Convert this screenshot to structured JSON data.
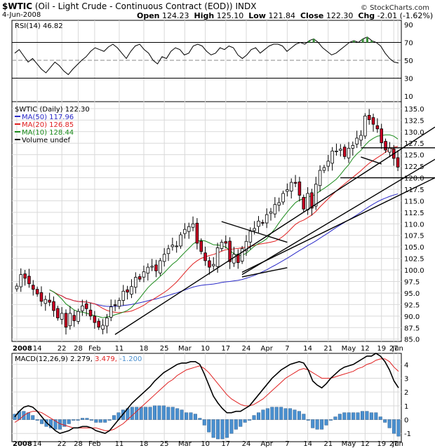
{
  "header": {
    "symbol": "$WTIC",
    "name": "(Oil - Light Crude - Continuous Contract (EOD))",
    "exchange": "INDX",
    "date": "4-Jun-2008",
    "credit": "© StockCharts.com",
    "open_label": "Open",
    "open": "124.23",
    "high_label": "High",
    "high": "125.10",
    "low_label": "Low",
    "low": "121.84",
    "close_label": "Close",
    "close": "122.30",
    "chg_label": "Chg",
    "chg": "-2.01 (-1.62%)"
  },
  "colors": {
    "up": "#ffffff",
    "down": "#cc0022",
    "ma50": "#2a2ac8",
    "ma20": "#e02020",
    "ma10": "#1a8a1a",
    "macd": "#000000",
    "signal": "#e02020",
    "hist": "#4a90d0",
    "grid": "#d9d9d9",
    "rsi_fill": "#3a8f3a"
  },
  "chart_data": [
    {
      "type": "line",
      "panel": "RSI",
      "legend": "RSI(14) 46.82",
      "y_ticks": [
        10,
        30,
        50,
        70,
        90
      ],
      "ylim": [
        10,
        90
      ],
      "guides": [
        30,
        50,
        70
      ],
      "values": [
        58,
        62,
        55,
        48,
        52,
        46,
        40,
        36,
        42,
        48,
        44,
        38,
        34,
        40,
        45,
        50,
        54,
        60,
        64,
        62,
        60,
        65,
        68,
        64,
        58,
        52,
        60,
        66,
        68,
        62,
        58,
        50,
        46,
        54,
        52,
        60,
        64,
        62,
        56,
        58,
        66,
        68,
        66,
        60,
        56,
        58,
        64,
        62,
        66,
        64,
        56,
        52,
        56,
        62,
        64,
        58,
        62,
        66,
        68,
        68,
        66,
        60,
        64,
        68,
        70,
        68,
        72,
        74,
        70,
        64,
        60,
        56,
        58,
        62,
        66,
        70,
        72,
        70,
        74,
        76,
        72,
        70,
        66,
        58,
        52,
        48,
        47
      ]
    },
    {
      "type": "candlestick",
      "panel": "Price",
      "legend": {
        "title": "$WTIC (Daily) 122.30",
        "ma50": "MA(50) 117.96",
        "ma20": "MA(20) 126.85",
        "ma10": "MA(10) 128.44",
        "volume": "Volume undef"
      },
      "y_ticks": [
        85.0,
        87.5,
        90.0,
        92.5,
        95.0,
        97.5,
        100.0,
        102.5,
        105.0,
        107.5,
        110.0,
        112.5,
        115.0,
        117.5,
        120.0,
        122.5,
        125.0,
        127.5,
        130.0,
        132.5,
        135.0
      ],
      "ylim": [
        84.5,
        136.5
      ],
      "x_ticks": [
        "2008",
        "14",
        "22",
        "28",
        "Feb",
        "11",
        "18",
        "25",
        "Mar",
        "10",
        "17",
        "24",
        "Apr",
        "7",
        "14",
        "21",
        "May",
        "12",
        "19",
        "27",
        "Jun"
      ],
      "closes": [
        96.5,
        99.0,
        98.2,
        97.0,
        95.8,
        94.8,
        93.2,
        93.6,
        93.0,
        91.2,
        89.6,
        90.6,
        87.6,
        90.6,
        89.0,
        91.0,
        92.2,
        91.6,
        90.0,
        88.6,
        87.6,
        88.0,
        89.6,
        92.0,
        92.4,
        93.4,
        95.4,
        95.2,
        96.4,
        98.4,
        98.0,
        99.6,
        100.6,
        100.8,
        99.8,
        102.0,
        103.4,
        104.6,
        105.4,
        105.2,
        107.6,
        108.8,
        109.4,
        110.0,
        105.8,
        104.0,
        102.0,
        100.6,
        101.2,
        104.8,
        106.0,
        105.8,
        101.8,
        103.4,
        101.6,
        104.6,
        106.2,
        108.4,
        109.0,
        110.6,
        110.2,
        112.0,
        112.6,
        114.2,
        114.6,
        116.6,
        117.4,
        119.0,
        118.8,
        116.2,
        113.2,
        116.6,
        113.4,
        118.6,
        121.6,
        122.2,
        123.6,
        125.8,
        125.8,
        126.2,
        124.6,
        126.4,
        127.0,
        128.6,
        129.2,
        133.4,
        132.6,
        131.6,
        130.6,
        127.6,
        126.0,
        126.4,
        124.2,
        122.3
      ],
      "trend_lines": [
        {
          "from": [
            "Feb 11",
            86.0
          ],
          "to": [
            "Jun 4",
            131.0
          ]
        },
        {
          "from": [
            "Mar 24",
            99.0
          ],
          "to": [
            "Jun 4",
            124.0
          ]
        },
        {
          "from": [
            "Mar 24",
            99.5
          ],
          "to": [
            "Jun 4",
            120.0
          ]
        },
        {
          "from": [
            "Mar 17",
            110.5
          ],
          "to": [
            "Apr 7",
            106.0
          ]
        },
        {
          "from": [
            "Mar 24",
            98.5
          ],
          "to": [
            "Apr 7",
            100.5
          ]
        },
        {
          "from": [
            "May 12",
            126.5
          ],
          "to": [
            "Jun 4",
            126.5
          ]
        },
        {
          "from": [
            "May 12",
            124.5
          ],
          "to": [
            "May 19",
            123.0
          ]
        },
        {
          "from": [
            "May 2",
            120.0
          ],
          "to": [
            "Jun 4",
            120.0
          ]
        }
      ]
    },
    {
      "type": "line",
      "panel": "MACD",
      "legend": {
        "name": "MACD(12,26,9)",
        "macd": "2.279",
        "signal": "3.479",
        "hist": "-1.200"
      },
      "y_ticks": [
        -1,
        0,
        1,
        2,
        3,
        4
      ],
      "ylim": [
        -1.6,
        4.8
      ],
      "macd": [
        0.2,
        0.6,
        0.9,
        1.0,
        0.9,
        0.6,
        0.2,
        -0.2,
        -0.5,
        -0.8,
        -1.0,
        -0.9,
        -0.8,
        -0.6,
        -0.6,
        -0.5,
        -0.5,
        -0.6,
        -0.8,
        -0.9,
        -1.0,
        -0.8,
        -0.4,
        0.0,
        0.4,
        0.8,
        1.2,
        1.5,
        1.8,
        2.1,
        2.4,
        2.8,
        3.1,
        3.4,
        3.6,
        3.8,
        4.0,
        4.1,
        4.1,
        4.2,
        4.2,
        4.0,
        3.3,
        2.5,
        1.7,
        1.2,
        0.8,
        0.5,
        0.5,
        0.6,
        0.6,
        0.8,
        1.0,
        1.4,
        1.8,
        2.2,
        2.6,
        3.0,
        3.3,
        3.6,
        3.8,
        4.0,
        4.1,
        4.2,
        4.1,
        3.6,
        2.8,
        2.5,
        2.3,
        2.6,
        3.0,
        3.3,
        3.6,
        3.8,
        3.9,
        4.0,
        4.2,
        4.4,
        4.6,
        4.6,
        4.8,
        4.6,
        4.2,
        3.6,
        2.8,
        2.3
      ],
      "signal": [
        -0.2,
        0.0,
        0.3,
        0.5,
        0.6,
        0.6,
        0.5,
        0.3,
        0.1,
        -0.1,
        -0.3,
        -0.4,
        -0.5,
        -0.6,
        -0.6,
        -0.6,
        -0.6,
        -0.6,
        -0.6,
        -0.7,
        -0.8,
        -0.8,
        -0.7,
        -0.5,
        -0.3,
        0.0,
        0.3,
        0.6,
        0.9,
        1.2,
        1.5,
        1.8,
        2.1,
        2.4,
        2.7,
        2.9,
        3.2,
        3.4,
        3.6,
        3.7,
        3.8,
        3.9,
        3.7,
        3.4,
        3.0,
        2.6,
        2.2,
        1.8,
        1.5,
        1.3,
        1.1,
        1.0,
        1.0,
        1.1,
        1.3,
        1.5,
        1.8,
        2.1,
        2.4,
        2.7,
        3.0,
        3.2,
        3.4,
        3.6,
        3.7,
        3.6,
        3.4,
        3.2,
        3.0,
        3.0,
        3.0,
        3.1,
        3.2,
        3.3,
        3.4,
        3.5,
        3.7,
        3.8,
        4.0,
        4.1,
        4.3,
        4.4,
        4.4,
        4.2,
        3.8,
        3.5
      ]
    }
  ]
}
